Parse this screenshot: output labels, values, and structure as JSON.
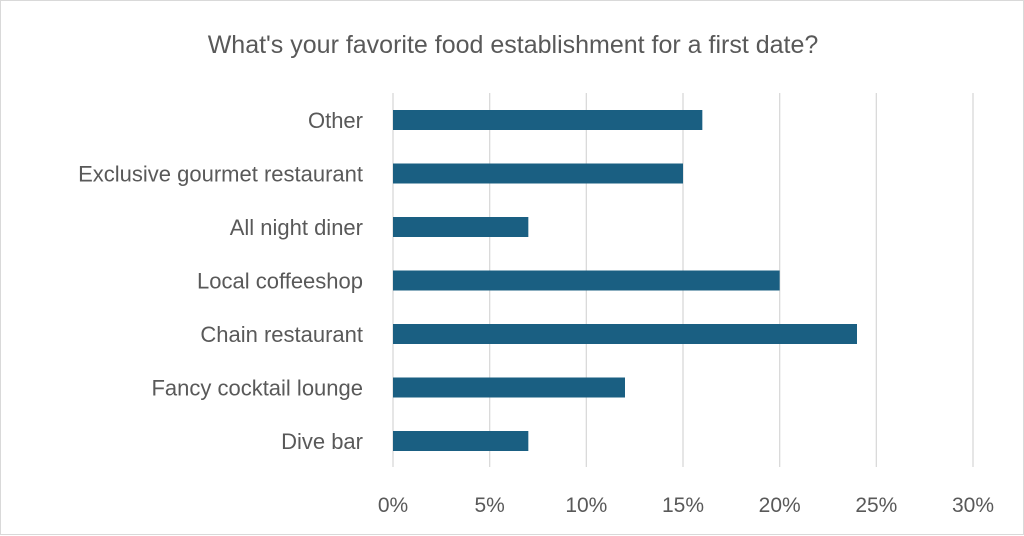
{
  "chart_data": {
    "type": "bar",
    "orientation": "horizontal",
    "title": "What's your favorite food establishment for a first date?",
    "categories": [
      "Other",
      "Exclusive gourmet restaurant",
      "All night diner",
      "Local coffeeshop",
      "Chain restaurant",
      "Fancy cocktail lounge",
      "Dive bar"
    ],
    "values": [
      16,
      15,
      7,
      20,
      24,
      12,
      7
    ],
    "xlim": [
      0,
      30
    ],
    "x_ticks": [
      0,
      5,
      10,
      15,
      20,
      25,
      30
    ],
    "x_tick_labels": [
      "0%",
      "5%",
      "10%",
      "15%",
      "20%",
      "25%",
      "30%"
    ],
    "grid": true,
    "legend": "none",
    "bar_color": "#1a5f82"
  }
}
